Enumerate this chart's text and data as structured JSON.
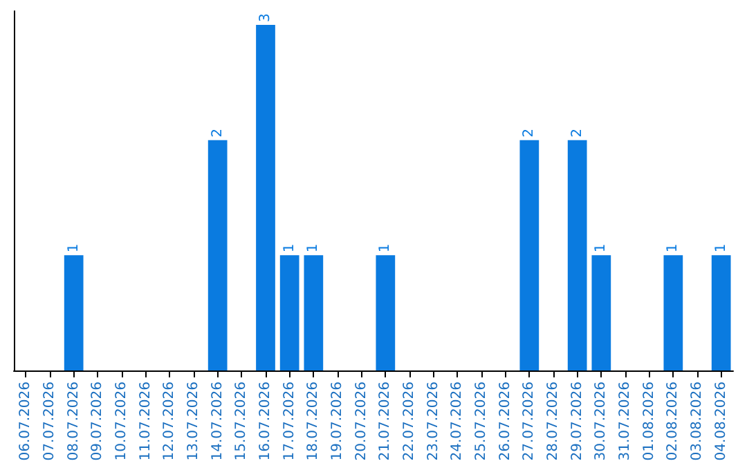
{
  "chart_data": {
    "type": "bar",
    "categories": [
      "06.07.2026",
      "07.07.2026",
      "08.07.2026",
      "09.07.2026",
      "10.07.2026",
      "11.07.2026",
      "12.07.2026",
      "13.07.2026",
      "14.07.2026",
      "15.07.2026",
      "16.07.2026",
      "17.07.2026",
      "18.07.2026",
      "19.07.2026",
      "20.07.2026",
      "21.07.2026",
      "22.07.2026",
      "23.07.2026",
      "24.07.2026",
      "25.07.2026",
      "26.07.2026",
      "27.07.2026",
      "28.07.2026",
      "29.07.2026",
      "30.07.2026",
      "31.07.2026",
      "01.08.2026",
      "02.08.2026",
      "03.08.2026",
      "04.08.2026"
    ],
    "values": [
      0,
      0,
      1,
      0,
      0,
      0,
      0,
      0,
      2,
      0,
      3,
      1,
      1,
      0,
      0,
      1,
      0,
      0,
      0,
      0,
      0,
      2,
      0,
      2,
      1,
      0,
      0,
      1,
      0,
      1
    ],
    "value_labels": [
      null,
      null,
      "1",
      null,
      null,
      null,
      null,
      null,
      "2",
      null,
      "3",
      "1",
      "1",
      null,
      null,
      "1",
      null,
      null,
      null,
      null,
      null,
      "2",
      null,
      "2",
      "1",
      null,
      null,
      "1",
      null,
      "1"
    ],
    "color": "#0a7be0",
    "tick_labels": "x",
    "grid": false
  }
}
